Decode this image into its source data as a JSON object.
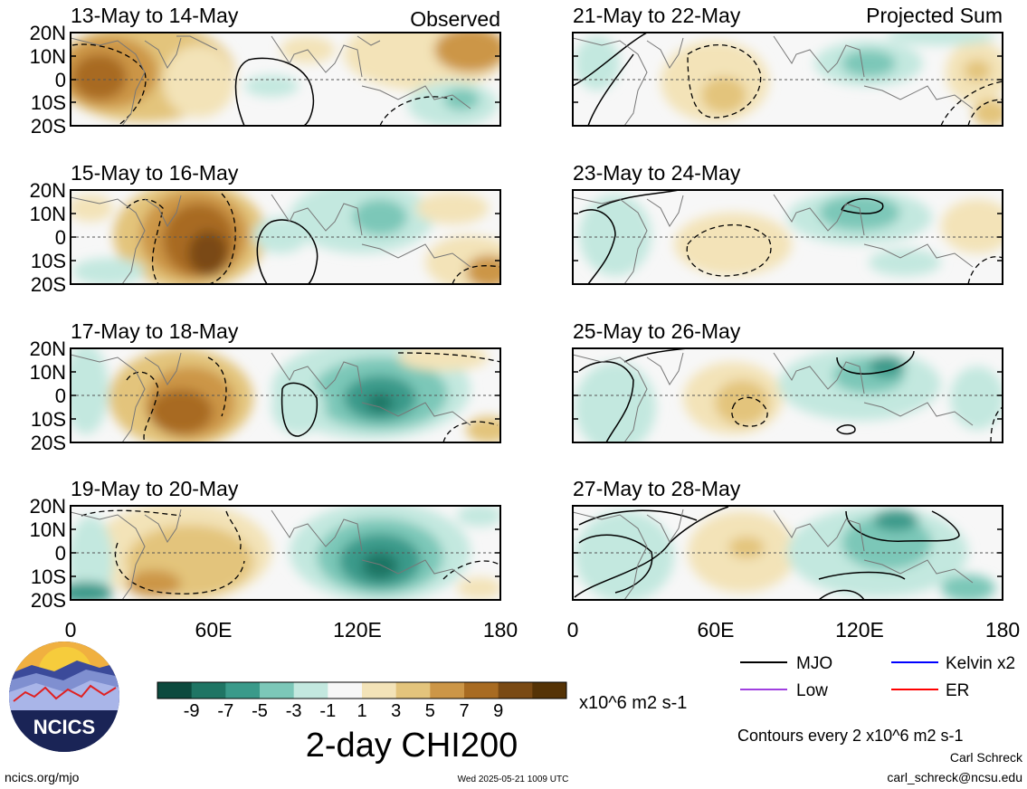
{
  "header": {
    "left_label": "Observed",
    "right_label": "Projected Sum"
  },
  "panels_left": [
    {
      "date": "13-May to 14-May"
    },
    {
      "date": "15-May to 16-May"
    },
    {
      "date": "17-May to 18-May"
    },
    {
      "date": "19-May to 20-May"
    }
  ],
  "panels_right": [
    {
      "date": "21-May to 22-May"
    },
    {
      "date": "23-May to 24-May"
    },
    {
      "date": "25-May to 26-May"
    },
    {
      "date": "27-May to 28-May"
    }
  ],
  "lat_labels": [
    "20N",
    "10N",
    "0",
    "10S",
    "20S"
  ],
  "lon_labels": [
    "0",
    "60E",
    "120E",
    "180"
  ],
  "colorbar": {
    "colors": [
      "#0c4a3e",
      "#1f7564",
      "#3a9a8a",
      "#7cc7b8",
      "#c3e8df",
      "#f7f7f7",
      "#f3e3b8",
      "#e3c47c",
      "#cc9647",
      "#a86b22",
      "#7a4a14",
      "#553306"
    ],
    "tick_labels": [
      "-9",
      "-7",
      "-5",
      "-3",
      "-1",
      "1",
      "3",
      "5",
      "7",
      "9"
    ],
    "units": "x10^6 m2 s-1",
    "title": "2-day CHI200"
  },
  "legend": [
    {
      "label": "MJO",
      "color": "#000000"
    },
    {
      "label": "Kelvin x2",
      "color": "#0000ff"
    },
    {
      "label": "Low",
      "color": "#a040e0"
    },
    {
      "label": "ER",
      "color": "#ff0000"
    }
  ],
  "contours_note": "Contours every 2 x10^6 m2 s-1",
  "author": "Carl Schreck",
  "email": "carl_schreck@ncsu.edu",
  "website": "ncics.org/mjo",
  "timestamp": "Wed 2025-05-21 1009 UTC",
  "logo_text": "NCICS"
}
